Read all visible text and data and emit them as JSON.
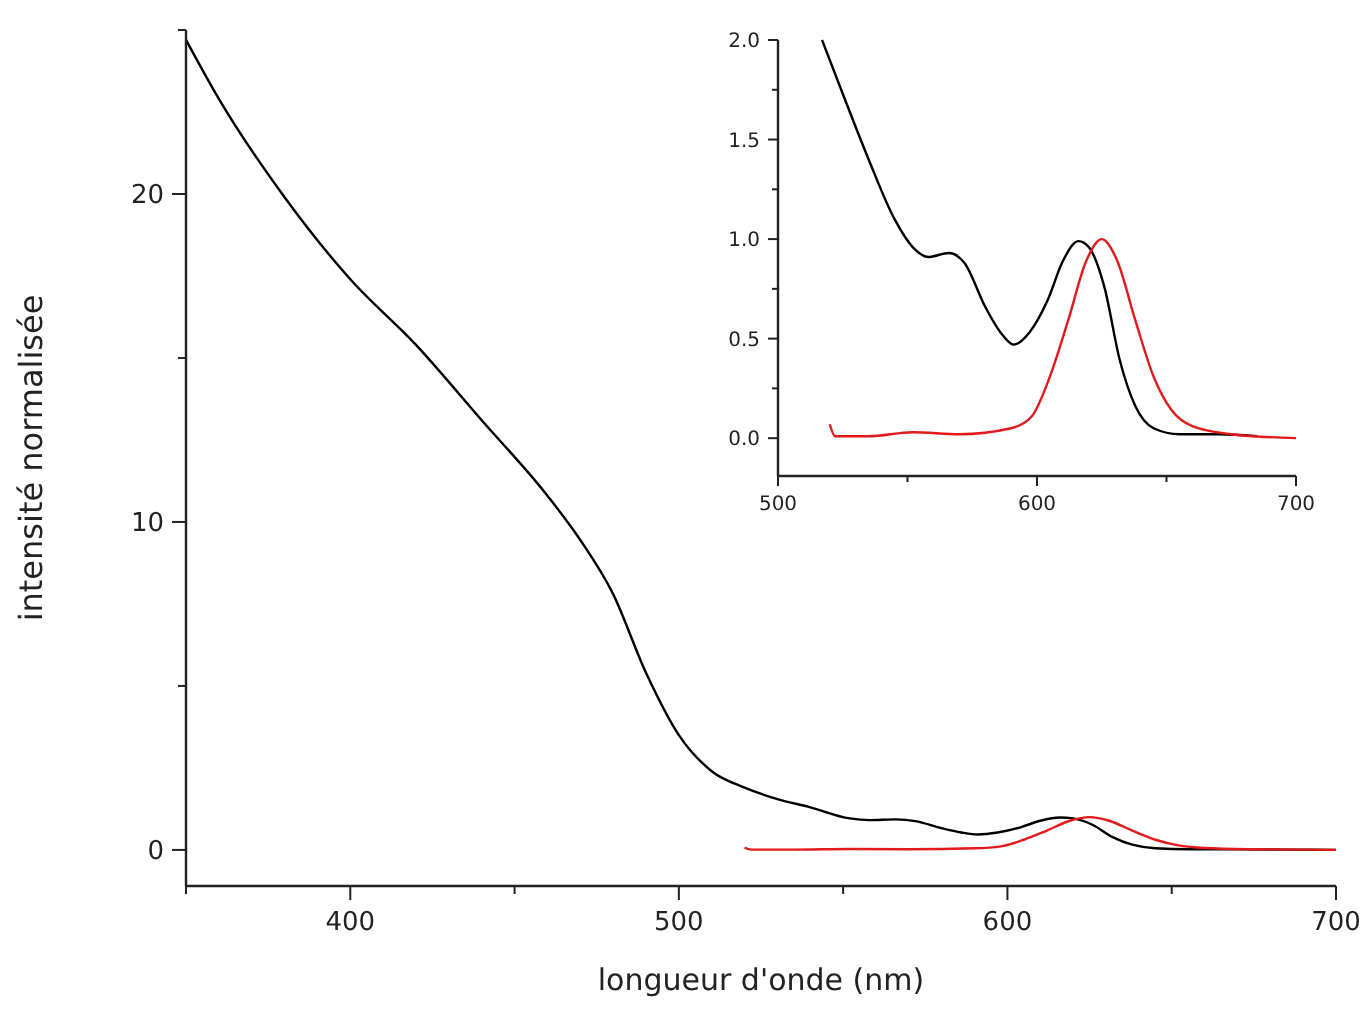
{
  "chart_data": [
    {
      "type": "line",
      "xlabel": "longueur d'onde (nm)",
      "ylabel": "intensité normalisée",
      "xlim": [
        350,
        700
      ],
      "ylim": [
        -1.1,
        25
      ],
      "xticks": [
        {
          "value": 350,
          "label": null
        },
        400,
        {
          "value": 450,
          "label": null
        },
        500,
        {
          "value": 550,
          "label": null
        },
        600,
        {
          "value": 650,
          "label": null
        },
        700
      ],
      "yticks": [
        0,
        {
          "value": 5,
          "label": null
        },
        10,
        {
          "value": 15,
          "label": null
        },
        20,
        {
          "value": 25,
          "label": null
        }
      ],
      "grid": false,
      "line_style": "solid",
      "series": [
        {
          "color": "#000000",
          "x": [
            350,
            360,
            380,
            400,
            420,
            440,
            460,
            470,
            480,
            490,
            500,
            510,
            520,
            530,
            540,
            552,
            558,
            566,
            572,
            580,
            586,
            591,
            597,
            604,
            610,
            616,
            620,
            626,
            632,
            638,
            645,
            655,
            670,
            685,
            700
          ],
          "values": [
            24.7,
            22.9,
            19.9,
            17.4,
            15.4,
            13.1,
            10.8,
            9.45,
            7.8,
            5.4,
            3.5,
            2.4,
            1.9,
            1.55,
            1.3,
            0.96,
            0.91,
            0.93,
            0.88,
            0.66,
            0.53,
            0.47,
            0.53,
            0.69,
            0.89,
            0.99,
            0.96,
            0.76,
            0.39,
            0.16,
            0.05,
            0.02,
            0.02,
            0.01,
            0.0
          ]
        },
        {
          "color": "#e31a1c",
          "x": [
            520,
            522,
            535,
            552,
            570,
            590,
            598,
            605,
            612,
            619,
            625,
            631,
            638,
            645,
            652,
            660,
            675,
            700
          ],
          "values": [
            0.07,
            0.01,
            0.01,
            0.03,
            0.02,
            0.05,
            0.11,
            0.31,
            0.59,
            0.89,
            1.0,
            0.89,
            0.59,
            0.31,
            0.14,
            0.06,
            0.02,
            0.0
          ]
        }
      ]
    },
    {
      "type": "line",
      "xlim": [
        500,
        700
      ],
      "ylim": [
        -0.19,
        2.0
      ],
      "xticks": [
        500,
        {
          "value": 550,
          "label": null
        },
        600,
        {
          "value": 650,
          "label": null
        },
        700
      ],
      "yticks": [
        "0.0",
        {
          "value": 0.25,
          "label": null
        },
        {
          "value": 0.5,
          "label": "0.5"
        },
        {
          "value": 0.75,
          "label": null
        },
        {
          "value": 1.0,
          "label": "1.0"
        },
        {
          "value": 1.25,
          "label": null
        },
        {
          "value": 1.5,
          "label": "1.5"
        },
        {
          "value": 1.75,
          "label": null
        },
        {
          "value": 2.0,
          "label": "2.0"
        }
      ],
      "grid": false,
      "line_style": "solid",
      "series": [
        {
          "color": "#000000",
          "x": [
            517,
            525,
            535,
            545,
            552,
            558,
            566,
            572,
            580,
            586,
            591,
            597,
            604,
            610,
            616,
            620,
            626,
            632,
            638,
            645,
            655,
            670,
            685
          ],
          "values": [
            2.0,
            1.73,
            1.4,
            1.1,
            0.96,
            0.91,
            0.93,
            0.88,
            0.66,
            0.53,
            0.47,
            0.53,
            0.69,
            0.89,
            0.99,
            0.96,
            0.76,
            0.39,
            0.16,
            0.05,
            0.02,
            0.02,
            0.01
          ]
        },
        {
          "color": "#e31a1c",
          "x": [
            520,
            522,
            535,
            552,
            570,
            590,
            598,
            605,
            612,
            619,
            625,
            631,
            638,
            645,
            652,
            660,
            675,
            700
          ],
          "values": [
            0.07,
            0.01,
            0.01,
            0.03,
            0.02,
            0.05,
            0.11,
            0.31,
            0.59,
            0.89,
            1.0,
            0.89,
            0.59,
            0.31,
            0.14,
            0.06,
            0.02,
            0.0
          ]
        }
      ]
    }
  ]
}
